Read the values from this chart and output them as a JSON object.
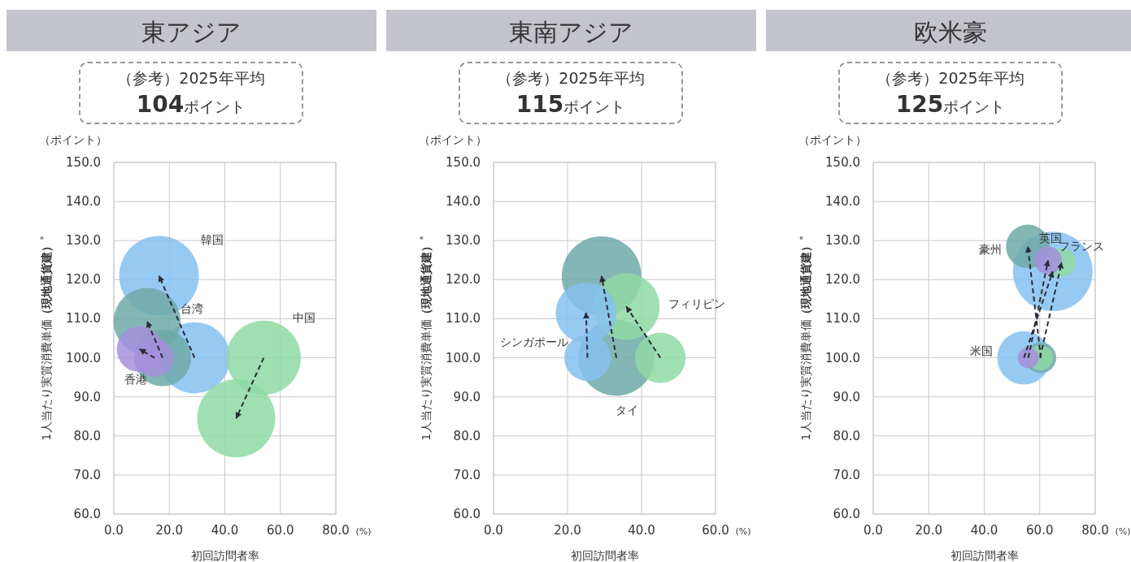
{
  "chart_data": [
    {
      "type": "bubble",
      "title": "東アジア",
      "subtitle": "（参考）2025年平均",
      "xlabel": "初回訪問者率",
      "ylabel": "1人当たり実質消費単価**（現地通貨建）**$^{*}$",
      "annotations": [
        "**104**ポイント",
        "（ポイント）",
        "(%)"
      ],
      "grid": true,
      "marker": "circle",
      "xlim": [
        0,
        80
      ],
      "xticks": [
        {
          "value": 0,
          "label": "0.0"
        },
        {
          "value": 20,
          "label": "20.0"
        },
        {
          "value": 40,
          "label": "40.0"
        },
        {
          "value": 60,
          "label": "60.0"
        },
        {
          "value": 80,
          "label": "80.0"
        }
      ],
      "ylim": [
        60,
        150
      ],
      "yticks": [
        {
          "value": 60,
          "label": "60.0"
        },
        {
          "value": 70,
          "label": "70.0"
        },
        {
          "value": 80,
          "label": "80.0"
        },
        {
          "value": 90,
          "label": "90.0"
        },
        {
          "value": 100,
          "label": "100.0"
        },
        {
          "value": 110,
          "label": "110.0"
        },
        {
          "value": 120,
          "label": "120.0"
        },
        {
          "value": 130,
          "label": "130.0"
        },
        {
          "value": 140,
          "label": "140.0"
        },
        {
          "value": 150,
          "label": "150.0"
        }
      ],
      "series": [
        {
          "name": "韓国",
          "color": "#85c1f0",
          "x": [
            29.1,
            16.3
          ],
          "values": [
            100,
            121
          ],
          "sizes": [
            0.8,
            1.0
          ]
        },
        {
          "name": "台湾",
          "color": "#6fa9a8",
          "x": [
            17.6,
            12.0
          ],
          "values": [
            100,
            109.3
          ],
          "sizes": [
            0.51,
            0.71
          ]
        },
        {
          "name": "香港",
          "color": "#a48fdc",
          "x": [
            14.7,
            9.3
          ],
          "values": [
            100,
            102.2
          ],
          "sizes": [
            0.23,
            0.33
          ]
        },
        {
          "name": "中国",
          "color": "#8fd9a5",
          "x": [
            54.0,
            44.1
          ],
          "values": [
            100,
            84.5
          ],
          "sizes": [
            0.87,
            0.96
          ]
        }
      ]
    },
    {
      "type": "bubble",
      "title": "東南アジア",
      "subtitle": "（参考）2025年平均",
      "xlabel": "初回訪問者率",
      "ylabel": "1人当たり実質消費単価**（現地通貨建）**$^{*}$",
      "annotations": [
        "**115**ポイント",
        "（ポイント）",
        "(%)"
      ],
      "grid": true,
      "marker": "circle",
      "xlim": [
        0,
        60
      ],
      "xticks": [
        {
          "value": 0,
          "label": "0.0"
        },
        {
          "value": 20,
          "label": "20.0"
        },
        {
          "value": 40,
          "label": "40.0"
        },
        {
          "value": 60,
          "label": "60.0"
        }
      ],
      "ylim": [
        60,
        150
      ],
      "yticks": [
        {
          "value": 60,
          "label": "60.0"
        },
        {
          "value": 70,
          "label": "70.0"
        },
        {
          "value": 80,
          "label": "80.0"
        },
        {
          "value": 90,
          "label": "90.0"
        },
        {
          "value": 100,
          "label": "100.0"
        },
        {
          "value": 110,
          "label": "110.0"
        },
        {
          "value": 120,
          "label": "120.0"
        },
        {
          "value": 130,
          "label": "130.0"
        },
        {
          "value": 140,
          "label": "140.0"
        },
        {
          "value": 150,
          "label": "150.0"
        }
      ],
      "series": [
        {
          "name": "シンガポール",
          "color": "#85c1f0",
          "x": [
            25.4,
            25.0
          ],
          "values": [
            100,
            111.5
          ],
          "sizes": [
            0.34,
            0.58
          ]
        },
        {
          "name": "タイ",
          "color": "#6fa9a8",
          "x": [
            33.2,
            29.2
          ],
          "values": [
            100,
            120.9
          ],
          "sizes": [
            0.91,
            1.0
          ]
        },
        {
          "name": "フィリピン",
          "color": "#8fd9a5",
          "x": [
            45.1,
            35.9
          ],
          "values": [
            100,
            113.1
          ],
          "sizes": [
            0.4,
            0.7
          ]
        }
      ]
    },
    {
      "type": "bubble",
      "title": "欧米豪",
      "subtitle": "（参考）2025年平均",
      "xlabel": "初回訪問者率",
      "ylabel": "1人当たり実質消費単価**（現地通貨建）**$^{*}$",
      "annotations": [
        "**125**ポイント",
        "（ポイント）",
        "(%)"
      ],
      "grid": true,
      "marker": "circle",
      "xlim": [
        0,
        80
      ],
      "xticks": [
        {
          "value": 0,
          "label": "0.0"
        },
        {
          "value": 20,
          "label": "20.0"
        },
        {
          "value": 40,
          "label": "40.0"
        },
        {
          "value": 60,
          "label": "60.0"
        },
        {
          "value": 80,
          "label": "80.0"
        }
      ],
      "ylim": [
        60,
        150
      ],
      "yticks": [
        {
          "value": 60,
          "label": "60.0"
        },
        {
          "value": 70,
          "label": "70.0"
        },
        {
          "value": 80,
          "label": "80.0"
        },
        {
          "value": 90,
          "label": "90.0"
        },
        {
          "value": 100,
          "label": "100.0"
        },
        {
          "value": 110,
          "label": "110.0"
        },
        {
          "value": 120,
          "label": "120.0"
        },
        {
          "value": 130,
          "label": "130.0"
        },
        {
          "value": 140,
          "label": "140.0"
        },
        {
          "value": 150,
          "label": "150.0"
        }
      ],
      "series": [
        {
          "name": "米国",
          "color": "#85c1f0",
          "x": [
            54.3,
            64.7
          ],
          "values": [
            100,
            122.1
          ],
          "sizes": [
            0.45,
            1.0
          ]
        },
        {
          "name": "豪州",
          "color": "#6fa9a8",
          "x": [
            60.4,
            55.7
          ],
          "values": [
            100,
            128.5
          ],
          "sizes": [
            0.15,
            0.3
          ]
        },
        {
          "name": "英国",
          "color": "#a48fdc",
          "x": [
            55.9,
            63.0
          ],
          "values": [
            100,
            124.9
          ],
          "sizes": [
            0.07,
            0.12
          ]
        },
        {
          "name": "フランス",
          "color": "#8fd9a5",
          "x": [
            60.1,
            67.9
          ],
          "values": [
            100,
            124.4
          ],
          "sizes": [
            0.1,
            0.13
          ]
        }
      ]
    }
  ]
}
